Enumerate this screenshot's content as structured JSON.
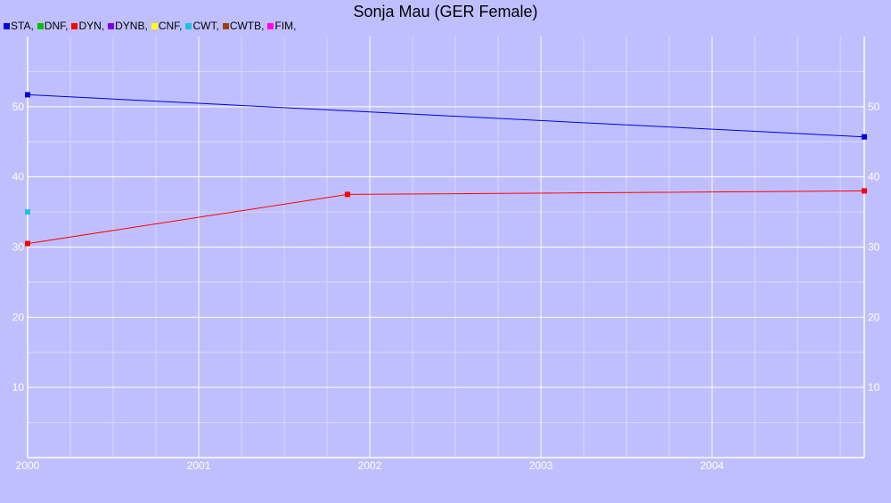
{
  "chart_data": {
    "type": "line",
    "title": "Sonja Mau (GER Female)",
    "xlabel": "",
    "ylabel": "",
    "xlim": [
      2000,
      2004.89
    ],
    "ylim": [
      0,
      60
    ],
    "x_ticks": [
      "2000",
      "2001",
      "2002",
      "2003",
      "2004"
    ],
    "y_ticks": [
      "10",
      "20",
      "30",
      "40",
      "50"
    ],
    "legend": [
      {
        "label": "STA,",
        "color": "#0000e0"
      },
      {
        "label": "DNF,",
        "color": "#00c000"
      },
      {
        "label": "DYN,",
        "color": "#ff0000"
      },
      {
        "label": "DYNB,",
        "color": "#8000e0"
      },
      {
        "label": "CNF,",
        "color": "#ffff00"
      },
      {
        "label": "CWT,",
        "color": "#20c0e0"
      },
      {
        "label": "CWTB,",
        "color": "#a04000"
      },
      {
        "label": "FIM,",
        "color": "#ff00ff"
      }
    ],
    "legend_position": "top-left",
    "grid": true,
    "series": [
      {
        "name": "STA",
        "color": "#0000e0",
        "points": [
          [
            2000.0,
            51.7
          ],
          [
            2004.89,
            45.7
          ]
        ]
      },
      {
        "name": "DYN",
        "color": "#ff0000",
        "points": [
          [
            2000.0,
            30.5
          ],
          [
            2001.87,
            37.5
          ],
          [
            2004.89,
            38.0
          ]
        ]
      },
      {
        "name": "CWT",
        "color": "#20c0e0",
        "points": [
          [
            2000.0,
            35.0
          ]
        ]
      }
    ]
  }
}
